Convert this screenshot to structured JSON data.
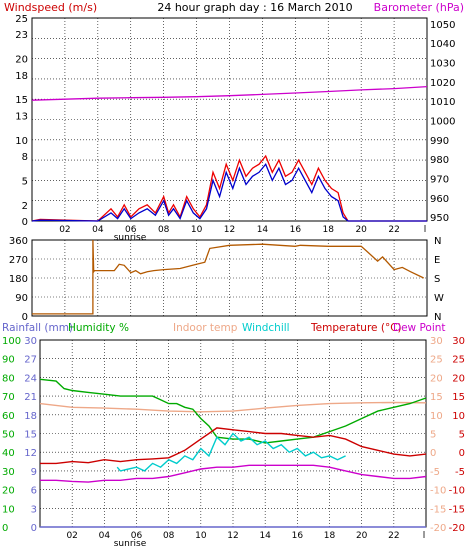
{
  "chart_data": [
    {
      "type": "line",
      "title": "24 hour graph day : 16 March 2010",
      "left_axis_label": "Windspeed (m/s)",
      "right_axis_label": "Barometer (hPa)",
      "x_ticks": [
        "02",
        "04",
        "06",
        "08",
        "10",
        "12",
        "14",
        "16",
        "18",
        "20",
        "22"
      ],
      "x_end_tick": "l",
      "sunrise_label": "sunrise",
      "y_left_ticks": [
        0,
        2,
        5,
        8,
        10,
        13,
        15,
        18,
        20,
        23,
        25
      ],
      "y_left_range": [
        0,
        25
      ],
      "y_right_ticks": [
        950,
        960,
        970,
        980,
        990,
        1000,
        1010,
        1020,
        1030,
        1040,
        1050
      ],
      "y_right_range": [
        948,
        1053
      ],
      "colors": {
        "left_label": "#cc0000",
        "right_label": "#cc00cc",
        "gust": "#ee0000",
        "avg": "#0000cc",
        "baro": "#cc00cc"
      },
      "series": [
        {
          "name": "Barometer",
          "axis": "right",
          "x": [
            0,
            2,
            4,
            6,
            8,
            10,
            12,
            14,
            16,
            18,
            20,
            22,
            24
          ],
          "values": [
            1010.5,
            1011,
            1011.5,
            1011.8,
            1012,
            1012.3,
            1012.8,
            1013.5,
            1014.2,
            1015,
            1015.8,
            1016.5,
            1017.5
          ]
        },
        {
          "name": "Gust",
          "axis": "left",
          "x": [
            0,
            0.5,
            4,
            4.8,
            5.2,
            5.6,
            6,
            6.5,
            7,
            7.5,
            8,
            8.3,
            8.6,
            9,
            9.4,
            9.8,
            10.2,
            10.6,
            11,
            11.4,
            11.8,
            12.2,
            12.6,
            13,
            13.4,
            13.8,
            14.2,
            14.6,
            15,
            15.4,
            15.8,
            16.2,
            16.6,
            17,
            17.4,
            17.8,
            18.2,
            18.6,
            18.9,
            19.2,
            24
          ],
          "values": [
            0,
            0.2,
            0,
            1.5,
            0.5,
            2,
            0.5,
            1.5,
            2,
            1,
            3,
            1,
            2,
            0.5,
            3,
            1.5,
            0.5,
            2,
            6,
            4,
            7,
            5,
            7.5,
            5.5,
            6.5,
            7,
            8,
            6,
            7.5,
            5.5,
            6,
            7.5,
            6,
            4.5,
            6.5,
            5,
            4,
            3.5,
            1,
            0,
            0
          ]
        },
        {
          "name": "Average",
          "axis": "left",
          "x": [
            0,
            0.5,
            4,
            4.8,
            5.2,
            5.6,
            6,
            6.5,
            7,
            7.5,
            8,
            8.3,
            8.6,
            9,
            9.4,
            9.8,
            10.2,
            10.6,
            11,
            11.4,
            11.8,
            12.2,
            12.6,
            13,
            13.4,
            13.8,
            14.2,
            14.6,
            15,
            15.4,
            15.8,
            16.2,
            16.6,
            17,
            17.4,
            17.8,
            18.2,
            18.6,
            18.9,
            19.2,
            24
          ],
          "values": [
            0,
            0.1,
            0,
            1,
            0.3,
            1.5,
            0.3,
            1,
            1.5,
            0.7,
            2.5,
            0.7,
            1.5,
            0.3,
            2.5,
            1,
            0.3,
            1.5,
            5,
            3,
            6,
            4,
            6.5,
            4.5,
            5.5,
            6,
            7,
            5,
            6.5,
            4.5,
            5,
            6.5,
            5,
            3.5,
            5.5,
            4,
            3,
            2.5,
            0.5,
            0,
            0
          ]
        }
      ]
    },
    {
      "type": "line",
      "x_ticks": [
        "02",
        "04",
        "06",
        "08",
        "10",
        "12",
        "14",
        "16",
        "18",
        "20",
        "22"
      ],
      "y_left_ticks": [
        0,
        90,
        180,
        270,
        360
      ],
      "y_left_range": [
        0,
        360
      ],
      "y_right_labels": [
        "N",
        "W",
        "S",
        "E",
        "N"
      ],
      "colors": {
        "dir": "#b35900"
      },
      "series": [
        {
          "name": "Wind direction",
          "x": [
            0,
            3.7,
            3.7,
            3.75,
            3.8,
            5,
            5.3,
            5.6,
            6,
            6.3,
            6.6,
            7,
            7.4,
            8,
            9,
            10,
            10.5,
            10.8,
            12,
            14,
            16,
            16.3,
            18,
            20,
            20.3,
            21,
            21.3,
            22,
            22.5,
            23,
            23.8
          ],
          "values": [
            10,
            10,
            360,
            210,
            215,
            215,
            245,
            240,
            205,
            215,
            200,
            210,
            215,
            220,
            225,
            245,
            255,
            320,
            335,
            340,
            330,
            335,
            330,
            330,
            310,
            260,
            280,
            220,
            230,
            210,
            180
          ]
        }
      ]
    },
    {
      "type": "line",
      "legend": [
        {
          "name": "Rainfall (mm)",
          "color": "#6666cc"
        },
        {
          "name": "Humidity %",
          "color": "#00aa00"
        },
        {
          "name": "Indoor temp",
          "color": "#eea888"
        },
        {
          "name": "Windchill",
          "color": "#00cccc"
        },
        {
          "name": "Temperature (°C)",
          "color": "#cc0000"
        },
        {
          "name": "Dew Point",
          "color": "#cc00cc"
        }
      ],
      "x_ticks": [
        "02",
        "04",
        "06",
        "08",
        "10",
        "12",
        "14",
        "16",
        "18",
        "20",
        "22"
      ],
      "x_end_tick": "l",
      "sunrise_label": "sunrise",
      "humidity_ticks": [
        0,
        10,
        20,
        30,
        40,
        50,
        60,
        70,
        80,
        90,
        100
      ],
      "rain_ticks": [
        0,
        3,
        6,
        9,
        12,
        15,
        18,
        21,
        24,
        27,
        30
      ],
      "temp_right_ticks": [
        -20,
        -15,
        -10,
        -5,
        0,
        5,
        10,
        15,
        20,
        25,
        30
      ],
      "temp_far_right_ticks": [
        -20,
        -15,
        -10,
        -5,
        0,
        5,
        10,
        15,
        20,
        25,
        30
      ],
      "temp_range": [
        -20,
        30
      ],
      "series": [
        {
          "name": "Indoor temp",
          "axis": "temp",
          "x": [
            0,
            2,
            4,
            6,
            8,
            10,
            12,
            14,
            16,
            18,
            20,
            22,
            24
          ],
          "values": [
            13,
            12,
            11.8,
            11.5,
            11,
            10.8,
            11,
            11.8,
            12.5,
            13,
            13.2,
            13.3,
            13.2
          ]
        },
        {
          "name": "Humidity",
          "axis": "humidity",
          "x": [
            0,
            1,
            1.5,
            2,
            3,
            4,
            5,
            6,
            7,
            7.5,
            8,
            8.5,
            9,
            9.5,
            10,
            10.5,
            11,
            12,
            13,
            14,
            15,
            16,
            17,
            18,
            19,
            20,
            21,
            22,
            23,
            24
          ],
          "values": [
            79,
            78,
            74,
            73,
            72,
            71,
            70,
            70,
            70,
            68,
            66,
            66,
            64,
            63,
            58,
            54,
            48,
            47,
            47,
            45,
            46,
            47,
            48,
            51,
            54,
            58,
            62,
            64,
            66,
            69
          ]
        },
        {
          "name": "Temperature",
          "axis": "temp",
          "x": [
            0,
            1,
            2,
            3,
            4,
            5,
            6,
            7,
            8,
            8.5,
            9,
            9.5,
            10,
            10.5,
            11,
            12,
            13,
            14,
            15,
            16,
            17,
            18,
            19,
            20,
            21,
            22,
            23,
            24
          ],
          "values": [
            -3,
            -3,
            -2.5,
            -2.8,
            -2,
            -2.5,
            -2,
            -1.8,
            -1.5,
            -0.5,
            0.5,
            2,
            3.5,
            5,
            6.5,
            6,
            5.5,
            5,
            5,
            4.5,
            4,
            4.5,
            3.5,
            1.5,
            0.5,
            -0.5,
            -1,
            -0.5
          ]
        },
        {
          "name": "Windchill",
          "axis": "temp",
          "x": [
            4.8,
            5,
            6,
            6.5,
            7,
            7.5,
            8,
            8.5,
            9,
            9.5,
            10,
            10.5,
            11,
            11.5,
            12,
            12.5,
            13,
            13.5,
            14,
            14.5,
            15,
            15.5,
            16,
            16.5,
            17,
            17.5,
            18,
            18.5,
            19
          ],
          "values": [
            -4,
            -5,
            -4,
            -5,
            -3,
            -4,
            -2,
            -3,
            -1,
            -2,
            1,
            -1,
            4,
            2,
            5,
            3,
            4,
            2,
            3,
            1,
            2,
            0,
            1,
            -1,
            0,
            -1.5,
            -1,
            -2,
            -1
          ]
        },
        {
          "name": "Dew Point",
          "axis": "temp",
          "x": [
            0,
            1,
            2,
            3,
            4,
            5,
            6,
            7,
            8,
            9,
            10,
            11,
            12,
            13,
            14,
            15,
            16,
            17,
            18,
            19,
            20,
            21,
            22,
            23,
            24
          ],
          "values": [
            -7.5,
            -7.5,
            -7.8,
            -8,
            -7.5,
            -7.5,
            -7,
            -7,
            -6.5,
            -5.5,
            -4.5,
            -4,
            -4,
            -3.5,
            -3.5,
            -3.5,
            -3.5,
            -3.5,
            -4,
            -5,
            -6,
            -6.5,
            -7,
            -7,
            -6.5
          ]
        },
        {
          "name": "Rainfall",
          "axis": "rain",
          "x": [
            0,
            24
          ],
          "values": [
            0,
            0
          ]
        }
      ]
    }
  ]
}
